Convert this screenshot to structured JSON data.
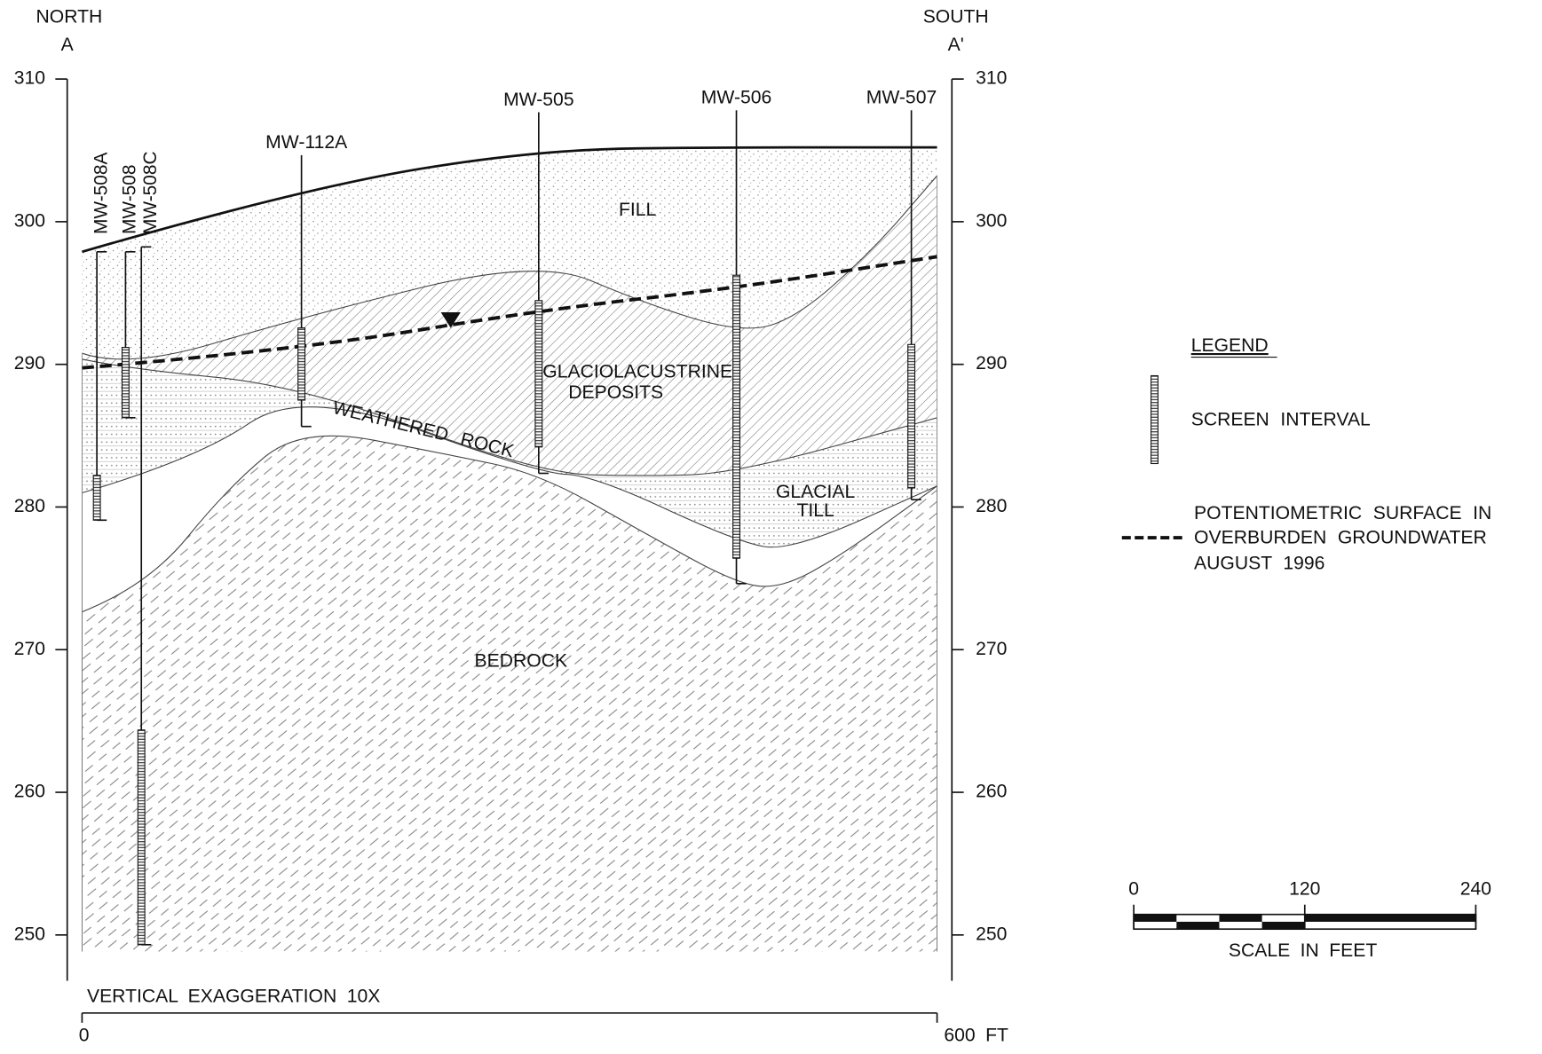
{
  "header": {
    "north": "NORTH",
    "a": "A",
    "south": "SOUTH",
    "a_prime": "A'"
  },
  "elevation_axis": {
    "ticks": [
      310,
      300,
      290,
      280,
      270,
      260,
      250
    ]
  },
  "wells": [
    "MW-508A",
    "MW-508",
    "MW-508C",
    "MW-112A",
    "MW-505",
    "MW-506",
    "MW-507"
  ],
  "layers": {
    "fill": "FILL",
    "glaciolacustrine": [
      "GLACIOLACUSTRINE",
      "DEPOSITS"
    ],
    "weathered_rock": "WEATHERED ROCK",
    "glacial_till": [
      "GLACIAL",
      "TILL"
    ],
    "bedrock": "BEDROCK"
  },
  "legend": {
    "title": "LEGEND",
    "screen": "SCREEN INTERVAL",
    "potentiometric": [
      "POTENTIOMETRIC SURFACE IN",
      "OVERBURDEN GROUNDWATER",
      "AUGUST 1996"
    ]
  },
  "scale": {
    "ticks": [
      0,
      120,
      240
    ],
    "label": "SCALE IN FEET"
  },
  "footer": {
    "note": "VERTICAL EXAGGERATION 10X",
    "start": "0",
    "end": "600 FT"
  }
}
